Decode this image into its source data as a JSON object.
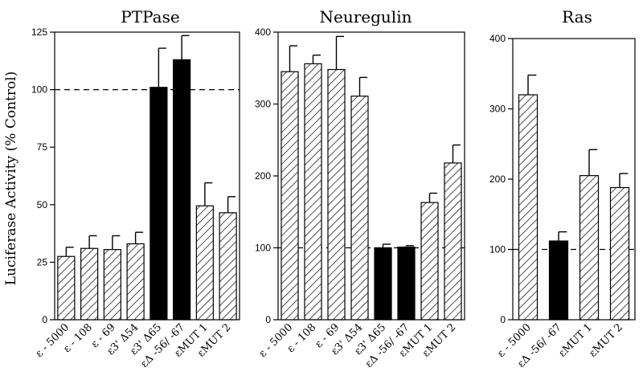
{
  "ylabel": "Luciferase Activity (% Control)",
  "colors": {
    "ink": "#000000",
    "background": "#ffffff"
  },
  "chart_data": [
    {
      "type": "bar",
      "title": "PTPase",
      "ylim": [
        0,
        125
      ],
      "yticks": [
        0,
        25,
        50,
        75,
        100,
        125
      ],
      "reference_line": 100,
      "categories": [
        "ε - 5000",
        "ε - 108",
        "ε - 69",
        "ε3' Δ54",
        "ε3' Δ65",
        "εΔ -56/ -67",
        "εMUT 1",
        "εMUT 2"
      ],
      "values": [
        27.5,
        31,
        30.5,
        33,
        101,
        113,
        49.5,
        46.5
      ],
      "errors": [
        4,
        5.5,
        6,
        5,
        17,
        10.5,
        10,
        7
      ],
      "fill": [
        "hatched",
        "hatched",
        "hatched",
        "hatched",
        "solid",
        "solid",
        "hatched",
        "hatched"
      ]
    },
    {
      "type": "bar",
      "title": "Neuregulin",
      "ylim": [
        0,
        400
      ],
      "yticks": [
        0,
        100,
        200,
        300,
        400
      ],
      "reference_line": 100,
      "categories": [
        "ε - 5000",
        "ε - 108",
        "ε - 69",
        "ε3' Δ54",
        "ε3' Δ65",
        "εΔ -56/ -67",
        "εMUT 1",
        "εMUT 2"
      ],
      "values": [
        345,
        356,
        348,
        311,
        100,
        101,
        163,
        218
      ],
      "errors": [
        36,
        12,
        46,
        26,
        5,
        2,
        13,
        25
      ],
      "fill": [
        "hatched",
        "hatched",
        "hatched",
        "hatched",
        "solid",
        "solid",
        "hatched",
        "hatched"
      ]
    },
    {
      "type": "bar",
      "title": "Ras",
      "ylim": [
        0,
        400
      ],
      "yticks": [
        0,
        100,
        200,
        300,
        400
      ],
      "reference_line": 100,
      "categories": [
        "ε - 5000",
        "εΔ -56/ -67",
        "εMUT 1",
        "εMUT 2"
      ],
      "values": [
        320,
        112,
        205,
        188
      ],
      "errors": [
        28,
        13,
        37,
        20
      ],
      "fill": [
        "hatched",
        "solid",
        "hatched",
        "hatched"
      ]
    }
  ]
}
